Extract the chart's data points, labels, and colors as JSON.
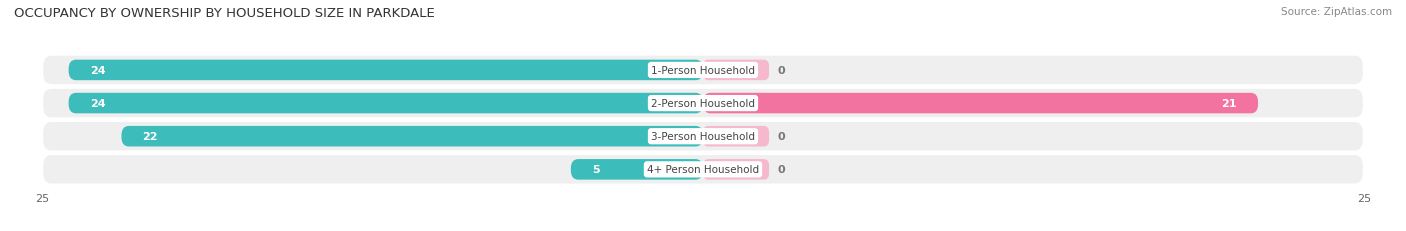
{
  "title": "OCCUPANCY BY OWNERSHIP BY HOUSEHOLD SIZE IN PARKDALE",
  "source": "Source: ZipAtlas.com",
  "categories": [
    "1-Person Household",
    "2-Person Household",
    "3-Person Household",
    "4+ Person Household"
  ],
  "owner_values": [
    24,
    24,
    22,
    5
  ],
  "renter_values": [
    0,
    21,
    0,
    0
  ],
  "owner_color": "#3dbcbc",
  "renter_color": "#f272a0",
  "owner_color_light": "#a0d8d8",
  "renter_color_light": "#f5b8cc",
  "row_bg_color": "#efefef",
  "axis_max": 25,
  "label_color_white": "#ffffff",
  "label_color_dark": "#777777",
  "title_fontsize": 9.5,
  "source_fontsize": 7.5,
  "tick_fontsize": 8,
  "legend_fontsize": 8,
  "bar_label_fontsize": 8,
  "category_label_fontsize": 7.5
}
